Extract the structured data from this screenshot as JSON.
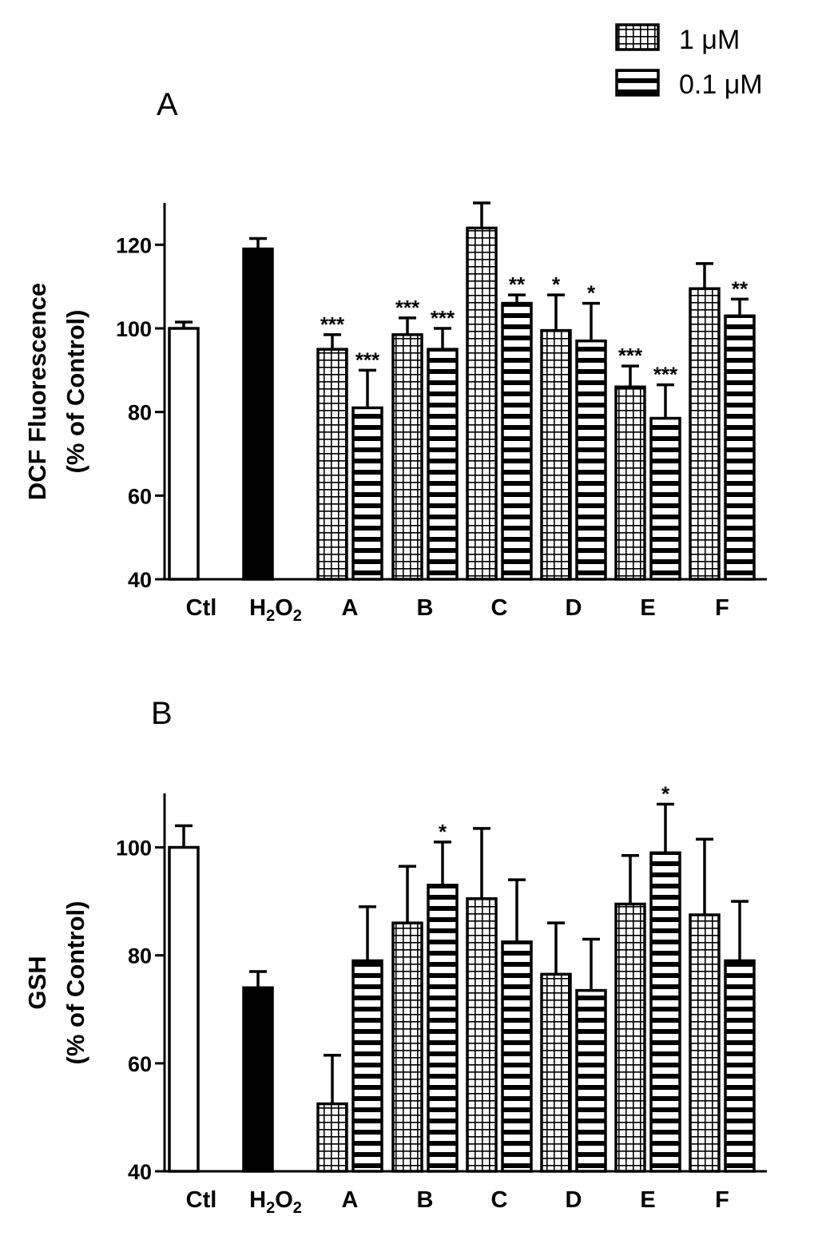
{
  "chart_data": [
    {
      "type": "bar",
      "panel": "A",
      "ylabel_line1": "DCF Fluorescence",
      "ylabel_line2": "(% of Control)",
      "ylim": [
        40,
        130
      ],
      "yticks": [
        40,
        60,
        80,
        100,
        120
      ],
      "categories": [
        "Ctl",
        "H2O2",
        "A",
        "B",
        "C",
        "D",
        "E",
        "F"
      ],
      "series": [
        {
          "name": "Control",
          "fill": "white",
          "values": [
            {
              "cat": "Ctl",
              "value": 100,
              "error": 1.5,
              "sig": ""
            }
          ]
        },
        {
          "name": "H2O2",
          "fill": "black",
          "values": [
            {
              "cat": "H2O2",
              "value": 119,
              "error": 2.5,
              "sig": ""
            }
          ]
        },
        {
          "name": "1 μM",
          "fill": "grid",
          "values": [
            {
              "cat": "A",
              "value": 95,
              "error": 3.5,
              "sig": "***"
            },
            {
              "cat": "B",
              "value": 98.5,
              "error": 4,
              "sig": "***"
            },
            {
              "cat": "C",
              "value": 124,
              "error": 6,
              "sig": ""
            },
            {
              "cat": "D",
              "value": 99.5,
              "error": 8.5,
              "sig": "*"
            },
            {
              "cat": "E",
              "value": 86,
              "error": 5,
              "sig": "***"
            },
            {
              "cat": "F",
              "value": 109.5,
              "error": 6,
              "sig": ""
            }
          ]
        },
        {
          "name": "0.1 μM",
          "fill": "hstripes",
          "values": [
            {
              "cat": "A",
              "value": 81,
              "error": 9,
              "sig": "***"
            },
            {
              "cat": "B",
              "value": 95,
              "error": 5,
              "sig": "***"
            },
            {
              "cat": "C",
              "value": 106,
              "error": 2,
              "sig": "**"
            },
            {
              "cat": "D",
              "value": 97,
              "error": 9,
              "sig": "*"
            },
            {
              "cat": "E",
              "value": 78.5,
              "error": 8,
              "sig": "***"
            },
            {
              "cat": "F",
              "value": 103,
              "error": 4,
              "sig": "**"
            }
          ]
        }
      ]
    },
    {
      "type": "bar",
      "panel": "B",
      "ylabel_line1": "GSH",
      "ylabel_line2": "(% of Control)",
      "ylim": [
        40,
        110
      ],
      "yticks": [
        40,
        60,
        80,
        100
      ],
      "categories": [
        "Ctl",
        "H2O2",
        "A",
        "B",
        "C",
        "D",
        "E",
        "F"
      ],
      "series": [
        {
          "name": "Control",
          "fill": "white",
          "values": [
            {
              "cat": "Ctl",
              "value": 100,
              "error": 4,
              "sig": ""
            }
          ]
        },
        {
          "name": "H2O2",
          "fill": "black",
          "values": [
            {
              "cat": "H2O2",
              "value": 74,
              "error": 3,
              "sig": ""
            }
          ]
        },
        {
          "name": "1 μM",
          "fill": "grid",
          "values": [
            {
              "cat": "A",
              "value": 52.5,
              "error": 9,
              "sig": ""
            },
            {
              "cat": "B",
              "value": 86,
              "error": 10.5,
              "sig": ""
            },
            {
              "cat": "C",
              "value": 90.5,
              "error": 13,
              "sig": ""
            },
            {
              "cat": "D",
              "value": 76.5,
              "error": 9.5,
              "sig": ""
            },
            {
              "cat": "E",
              "value": 89.5,
              "error": 9,
              "sig": ""
            },
            {
              "cat": "F",
              "value": 87.5,
              "error": 14,
              "sig": ""
            }
          ]
        },
        {
          "name": "0.1 μM",
          "fill": "hstripes",
          "values": [
            {
              "cat": "A",
              "value": 79,
              "error": 10,
              "sig": ""
            },
            {
              "cat": "B",
              "value": 93,
              "error": 8,
              "sig": "*"
            },
            {
              "cat": "C",
              "value": 82.5,
              "error": 11.5,
              "sig": ""
            },
            {
              "cat": "D",
              "value": 73.5,
              "error": 9.5,
              "sig": ""
            },
            {
              "cat": "E",
              "value": 99,
              "error": 9,
              "sig": "*"
            },
            {
              "cat": "F",
              "value": 79,
              "error": 11,
              "sig": ""
            }
          ]
        }
      ]
    }
  ],
  "legend": {
    "items": [
      {
        "label": "1 μM",
        "fill": "grid"
      },
      {
        "label": "0.1 μM",
        "fill": "hstripes"
      }
    ]
  },
  "labels": {
    "panel_a": "A",
    "panel_b": "B",
    "h2o2_main": "H",
    "h2o2_sub1": "2",
    "h2o2_mid": "O",
    "h2o2_sub2": "2"
  }
}
